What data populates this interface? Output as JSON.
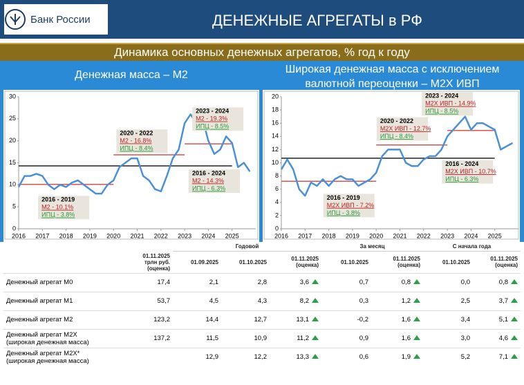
{
  "header": {
    "logo": "Банк России",
    "title": "ДЕНЕЖНЫЕ АГРЕГАТЫ в РФ",
    "subtitle": "Динамика основных денежных агрегатов, % год к году"
  },
  "chart_data": [
    {
      "type": "line",
      "title": "Денежная масса – М2",
      "x": [
        2016,
        2016.25,
        2016.5,
        2016.75,
        2017,
        2017.25,
        2017.5,
        2017.75,
        2018,
        2018.25,
        2018.5,
        2018.75,
        2019,
        2019.25,
        2019.5,
        2019.75,
        2020,
        2020.25,
        2020.5,
        2020.75,
        2021,
        2021.25,
        2021.5,
        2021.75,
        2022,
        2022.25,
        2022.5,
        2022.75,
        2023,
        2023.25,
        2023.5,
        2023.75,
        2024,
        2024.25,
        2024.5,
        2024.75,
        2025,
        2025.25,
        2025.5,
        2025.75
      ],
      "series": [
        {
          "color": "#4a90d9",
          "values": [
            9.5,
            12,
            12,
            12.5,
            12,
            10,
            9,
            10,
            9.5,
            10.5,
            11,
            10,
            9,
            8,
            8,
            10,
            11,
            14,
            15,
            16,
            16,
            12,
            11,
            9,
            8.5,
            12,
            16,
            18,
            24,
            26,
            24,
            25,
            20,
            17,
            18,
            21,
            19.5,
            14,
            15,
            13
          ]
        }
      ],
      "xlim": [
        2016,
        2026
      ],
      "xticks": [
        2016,
        2017,
        2018,
        2019,
        2020,
        2021,
        2022,
        2023,
        2024,
        2025
      ],
      "ylim": [
        0,
        30
      ],
      "yticks": [
        0,
        5,
        10,
        15,
        20,
        25,
        30
      ],
      "reference_lines": [
        {
          "period": "2016 - 2019",
          "label": "М2 - 10.1%",
          "value": 10.1,
          "cpi": "ИПЦ - 3.8%",
          "x": [
            2016,
            2020
          ],
          "color": "#d9534f"
        },
        {
          "period": "2020 - 2022",
          "label": "М2 - 16.8%",
          "value": 16.8,
          "cpi": "ИПЦ - 8.4%",
          "x": [
            2020,
            2023
          ],
          "color": "#d9534f"
        },
        {
          "period": "2023 - 2024",
          "label": "М2 - 19.3%",
          "value": 19.3,
          "cpi": "ИПЦ - 8.5%",
          "x": [
            2023,
            2025
          ],
          "color": "#d9534f"
        },
        {
          "period": "2016 - 2024",
          "label": "М2 - 14.3%",
          "value": 14.3,
          "cpi": "ИПЦ - 6.3%",
          "x": [
            2016,
            2025
          ],
          "color": "#222222"
        }
      ]
    },
    {
      "type": "line",
      "title": "Широкая денежная масса с исключением валютной переоценки – М2Х ИВП",
      "x": [
        2016,
        2016.25,
        2016.5,
        2016.75,
        2017,
        2017.25,
        2017.5,
        2017.75,
        2018,
        2018.25,
        2018.5,
        2018.75,
        2019,
        2019.25,
        2019.5,
        2019.75,
        2020,
        2020.25,
        2020.5,
        2020.75,
        2021,
        2021.25,
        2021.5,
        2021.75,
        2022,
        2022.25,
        2022.5,
        2022.75,
        2023,
        2023.25,
        2023.5,
        2023.75,
        2024,
        2024.25,
        2024.5,
        2024.75,
        2025,
        2025.25,
        2025.5,
        2025.75
      ],
      "series": [
        {
          "color": "#4a90d9",
          "values": [
            9,
            10.5,
            9,
            6,
            5,
            7,
            6.5,
            7.5,
            6.5,
            7.5,
            8,
            7.5,
            7.5,
            6.5,
            7,
            7.5,
            8.5,
            11,
            12,
            12,
            12,
            10,
            9.5,
            9.5,
            10.5,
            11,
            11,
            12,
            14,
            15,
            16,
            17,
            15,
            16,
            16,
            15.5,
            15,
            12,
            12.5,
            13
          ]
        }
      ],
      "xlim": [
        2016,
        2026
      ],
      "xticks": [
        2016,
        2017,
        2018,
        2019,
        2020,
        2021,
        2022,
        2023,
        2024,
        2025
      ],
      "ylim": [
        0,
        20
      ],
      "yticks": [
        0,
        2,
        4,
        6,
        8,
        10,
        12,
        14,
        16,
        18,
        20
      ],
      "reference_lines": [
        {
          "period": "2016 - 2019",
          "label": "М2Х ИВП - 7.2%",
          "value": 7.2,
          "cpi": "ИПЦ - 3.8%",
          "x": [
            2016,
            2020
          ],
          "color": "#d9534f"
        },
        {
          "period": "2020 - 2022",
          "label": "М2Х ИВП - 12.7%",
          "value": 12.7,
          "cpi": "ИПЦ - 8.4%",
          "x": [
            2020,
            2023
          ],
          "color": "#d9534f"
        },
        {
          "period": "2023 - 2024",
          "label": "М2Х ИВП - 14.9%",
          "value": 14.9,
          "cpi": "ИПЦ - 8.5%",
          "x": [
            2023,
            2025
          ],
          "color": "#d9534f"
        },
        {
          "period": "2016 - 2024",
          "label": "М2Х ИВП - 10.7%",
          "value": 10.7,
          "cpi": "ИПЦ - 6.3%",
          "x": [
            2016,
            2025
          ],
          "color": "#222222"
        }
      ]
    }
  ],
  "table": {
    "groups": [
      "Годовой",
      "За месяц",
      "С начала года"
    ],
    "columns": [
      "01.11.2025\nтрлн руб.\n(оценка)",
      "01.09.2025",
      "01.10.2025",
      "01.11.2025\n(оценка)",
      "01.10.2025",
      "01.11.2025\n(оценка)",
      "01.10.2025",
      "01.11.2025\n(оценка)"
    ],
    "rows": [
      {
        "name": "Денежный агрегат М0",
        "cells": [
          "17,4",
          "2,1",
          "2,8",
          "3,6",
          "0,7",
          "0,8",
          "0,0",
          "0,8"
        ]
      },
      {
        "name": "Денежный агрегат М1",
        "cells": [
          "53,7",
          "4,5",
          "4,3",
          "8,2",
          "0,3",
          "1,2",
          "2,5",
          "3,7"
        ]
      },
      {
        "name": "Денежный агрегат М2",
        "cells": [
          "123,2",
          "14,4",
          "12,7",
          "13,1",
          "-0,2",
          "1,6",
          "3,4",
          "5,1"
        ]
      },
      {
        "name": "Денежный агрегат М2Х\n(широкая денежная масса)",
        "cells": [
          "137,2",
          "11,5",
          "10,9",
          "11,2",
          "0,9",
          "1,6",
          "3,0",
          "4,6"
        ]
      },
      {
        "name": "Денежный агрегат М2Х*\n(широкая денежная масса)",
        "cells": [
          null,
          "12,9",
          "12,2",
          "13,3",
          "0,6",
          "1,9",
          "5,2",
          "7,1"
        ]
      }
    ]
  }
}
